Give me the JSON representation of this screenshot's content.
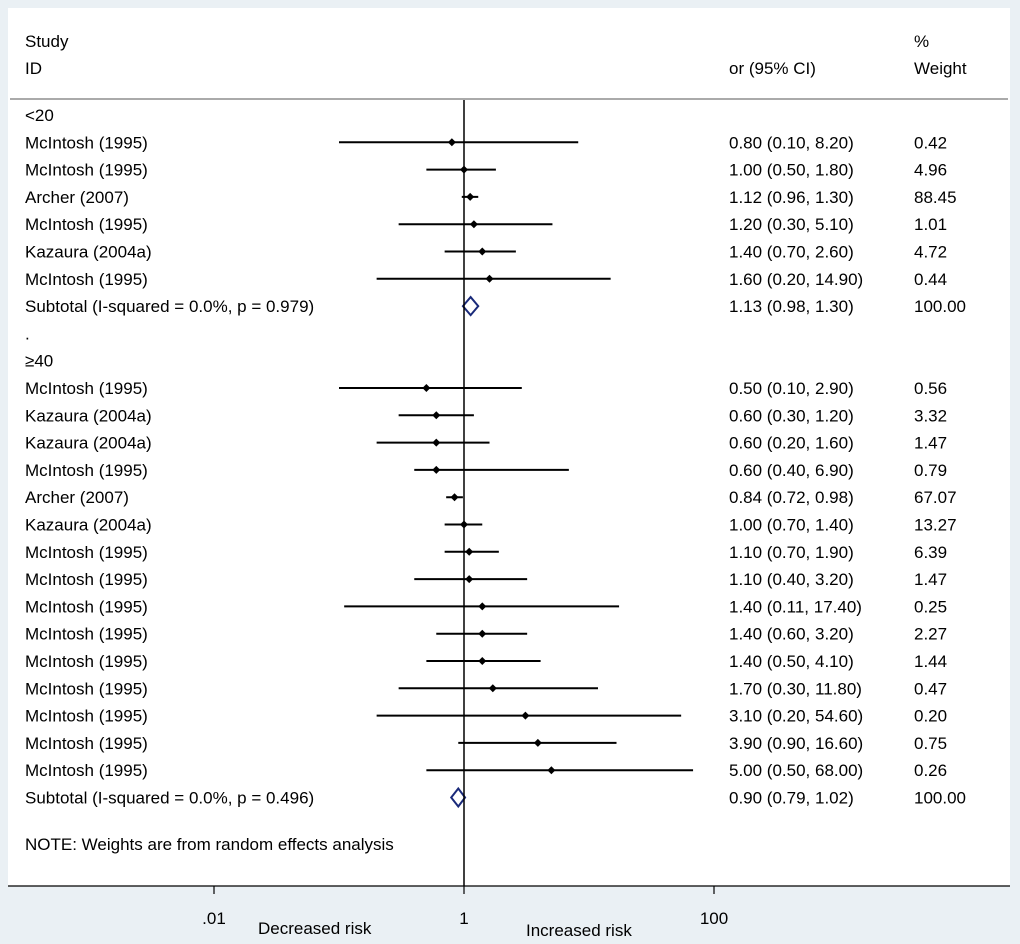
{
  "chart_data": {
    "type": "forest",
    "measure_label": "or (95% CI)",
    "header": {
      "col1_line1": "Study",
      "col1_line2": "ID",
      "col3_line1": "%",
      "col3_line2": "Weight"
    },
    "x_scale": "log",
    "xlim": [
      0.00316,
      3162
    ],
    "null_value": 1,
    "ticks": [
      {
        "value": 0.01,
        "label": ".01"
      },
      {
        "value": 1,
        "label": "1"
      },
      {
        "value": 100,
        "label": "100"
      }
    ],
    "x_caption_left": "Decreased risk",
    "x_caption_right": "Increased risk",
    "note": "NOTE: Weights are from random effects analysis",
    "rows": [
      {
        "kind": "group",
        "label": "<20"
      },
      {
        "kind": "study",
        "label": "McIntosh  (1995)",
        "est": 0.8,
        "lo": 0.1,
        "hi": 8.2,
        "ci_text": "0.80 (0.10, 8.20)",
        "weight": "0.42"
      },
      {
        "kind": "study",
        "label": "McIntosh  (1995)",
        "est": 1.0,
        "lo": 0.5,
        "hi": 1.8,
        "ci_text": "1.00 (0.50, 1.80)",
        "weight": "4.96"
      },
      {
        "kind": "study",
        "label": "Archer (2007)",
        "est": 1.12,
        "lo": 0.96,
        "hi": 1.3,
        "ci_text": "1.12 (0.96, 1.30)",
        "weight": "88.45"
      },
      {
        "kind": "study",
        "label": "McIntosh  (1995)",
        "est": 1.2,
        "lo": 0.3,
        "hi": 5.1,
        "ci_text": "1.20 (0.30, 5.10)",
        "weight": "1.01"
      },
      {
        "kind": "study",
        "label": "Kazaura  (2004a)",
        "est": 1.4,
        "lo": 0.7,
        "hi": 2.6,
        "ci_text": "1.40 (0.70, 2.60)",
        "weight": "4.72"
      },
      {
        "kind": "study",
        "label": "McIntosh  (1995)",
        "est": 1.6,
        "lo": 0.2,
        "hi": 14.9,
        "ci_text": "1.60 (0.20, 14.90)",
        "weight": "0.44"
      },
      {
        "kind": "subtotal",
        "label": "Subtotal  (I-squared = 0.0%, p = 0.979)",
        "est": 1.13,
        "lo": 0.98,
        "hi": 1.3,
        "ci_text": "1.13 (0.98, 1.30)",
        "weight": "100.00"
      },
      {
        "kind": "group",
        "label": "."
      },
      {
        "kind": "group",
        "label": "≥40"
      },
      {
        "kind": "study",
        "label": "McIntosh  (1995)",
        "est": 0.5,
        "lo": 0.1,
        "hi": 2.9,
        "ci_text": "0.50 (0.10, 2.90)",
        "weight": "0.56"
      },
      {
        "kind": "study",
        "label": "Kazaura  (2004a)",
        "est": 0.6,
        "lo": 0.3,
        "hi": 1.2,
        "ci_text": "0.60 (0.30, 1.20)",
        "weight": "3.32"
      },
      {
        "kind": "study",
        "label": "Kazaura  (2004a)",
        "est": 0.6,
        "lo": 0.2,
        "hi": 1.6,
        "ci_text": "0.60 (0.20, 1.60)",
        "weight": "1.47"
      },
      {
        "kind": "study",
        "label": "McIntosh  (1995)",
        "est": 0.6,
        "lo": 0.4,
        "hi": 6.9,
        "ci_text": "0.60 (0.40, 6.90)",
        "weight": "0.79"
      },
      {
        "kind": "study",
        "label": "Archer (2007)",
        "est": 0.84,
        "lo": 0.72,
        "hi": 0.98,
        "ci_text": "0.84 (0.72, 0.98)",
        "weight": "67.07"
      },
      {
        "kind": "study",
        "label": "Kazaura  (2004a)",
        "est": 1.0,
        "lo": 0.7,
        "hi": 1.4,
        "ci_text": "1.00 (0.70, 1.40)",
        "weight": "13.27"
      },
      {
        "kind": "study",
        "label": "McIntosh  (1995)",
        "est": 1.1,
        "lo": 0.7,
        "hi": 1.9,
        "ci_text": "1.10 (0.70, 1.90)",
        "weight": "6.39"
      },
      {
        "kind": "study",
        "label": "McIntosh  (1995)",
        "est": 1.1,
        "lo": 0.4,
        "hi": 3.2,
        "ci_text": "1.10 (0.40, 3.20)",
        "weight": "1.47"
      },
      {
        "kind": "study",
        "label": "McIntosh  (1995)",
        "est": 1.4,
        "lo": 0.11,
        "hi": 17.4,
        "ci_text": "1.40 (0.11, 17.40)",
        "weight": "0.25"
      },
      {
        "kind": "study",
        "label": "McIntosh  (1995)",
        "est": 1.4,
        "lo": 0.6,
        "hi": 3.2,
        "ci_text": "1.40 (0.60, 3.20)",
        "weight": "2.27"
      },
      {
        "kind": "study",
        "label": "McIntosh  (1995)",
        "est": 1.4,
        "lo": 0.5,
        "hi": 4.1,
        "ci_text": "1.40 (0.50, 4.10)",
        "weight": "1.44"
      },
      {
        "kind": "study",
        "label": "McIntosh  (1995)",
        "est": 1.7,
        "lo": 0.3,
        "hi": 11.8,
        "ci_text": "1.70 (0.30, 11.80)",
        "weight": "0.47"
      },
      {
        "kind": "study",
        "label": "McIntosh  (1995)",
        "est": 3.1,
        "lo": 0.2,
        "hi": 54.6,
        "ci_text": "3.10 (0.20, 54.60)",
        "weight": "0.20"
      },
      {
        "kind": "study",
        "label": "McIntosh  (1995)",
        "est": 3.9,
        "lo": 0.9,
        "hi": 16.6,
        "ci_text": "3.90 (0.90, 16.60)",
        "weight": "0.75"
      },
      {
        "kind": "study",
        "label": "McIntosh  (1995)",
        "est": 5.0,
        "lo": 0.5,
        "hi": 68.0,
        "ci_text": "5.00 (0.50, 68.00)",
        "weight": "0.26"
      },
      {
        "kind": "subtotal",
        "label": "Subtotal  (I-squared = 0.0%, p = 0.496)",
        "est": 0.9,
        "lo": 0.79,
        "hi": 1.02,
        "ci_text": "0.90 (0.79, 1.02)",
        "weight": "100.00"
      }
    ]
  },
  "colors": {
    "panel_bg": "#ffffff",
    "outer_bg": "#eaf0f4",
    "diamond": "#1a2a7a",
    "line": "#000000",
    "rule": "#555555"
  }
}
